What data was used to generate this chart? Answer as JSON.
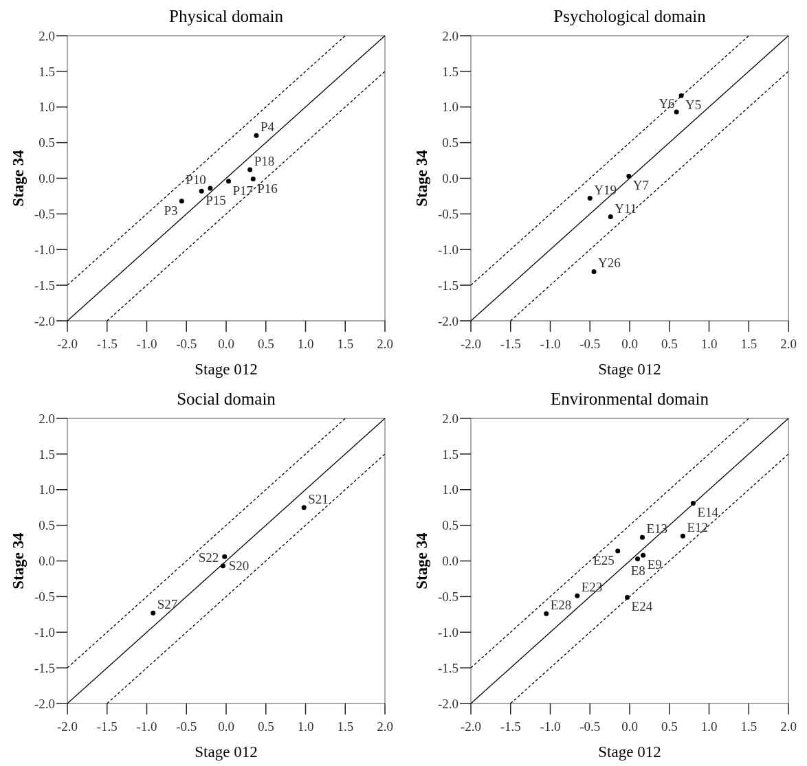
{
  "chart_data": [
    {
      "type": "scatter",
      "title": "Physical domain",
      "xlabel": "Stage 012",
      "ylabel": "Stage 34",
      "xlim": [
        -2,
        2
      ],
      "ylim": [
        -2,
        2
      ],
      "xticks": [
        {
          "value": -2,
          "label": "-2.0"
        },
        -1.5,
        {
          "value": -1,
          "label": "-1.0"
        },
        -0.5,
        {
          "value": 0,
          "label": "0.0"
        },
        0.5,
        {
          "value": 1,
          "label": "1.0"
        },
        1.5,
        {
          "value": 2,
          "label": "2.0"
        }
      ],
      "yticks": [
        {
          "value": -2,
          "label": "-2.0"
        },
        -1.5,
        {
          "value": -1,
          "label": "-1.0"
        },
        -0.5,
        {
          "value": 0,
          "label": "0.0"
        },
        0.5,
        {
          "value": 1,
          "label": "1.0"
        },
        1.5,
        {
          "value": 2,
          "label": "2.0"
        }
      ],
      "grid": false,
      "series": [
        {
          "marker": "circle",
          "color": "#000000",
          "x": [
            0.38,
            0.3,
            0.34,
            0.03,
            -0.2,
            -0.31,
            -0.56
          ],
          "values": [
            0.6,
            0.12,
            -0.01,
            -0.04,
            -0.14,
            -0.18,
            -0.32
          ]
        },
        {
          "type": "line",
          "color": "#000000",
          "line_style": "solid",
          "x": [
            -2,
            2
          ],
          "values": [
            -2,
            2
          ]
        },
        {
          "type": "line",
          "color": "#000000",
          "line_style": "dashed",
          "x": [
            -2,
            1.5
          ],
          "values": [
            -1.5,
            2
          ]
        },
        {
          "type": "line",
          "color": "#000000",
          "line_style": "dashed",
          "x": [
            -1.5,
            2
          ],
          "values": [
            -2,
            1.5
          ]
        }
      ],
      "annotations": [
        {
          "text": "P4",
          "x": 0.38,
          "y": 0.6
        },
        {
          "text": "P18",
          "x": 0.3,
          "y": 0.12
        },
        {
          "text": "P16",
          "x": 0.34,
          "y": -0.01
        },
        {
          "text": "P17",
          "x": 0.03,
          "y": -0.04
        },
        {
          "text": "P10",
          "x": -0.2,
          "y": -0.14
        },
        {
          "text": "P15",
          "x": -0.31,
          "y": -0.18
        },
        {
          "text": "P3",
          "x": -0.56,
          "y": -0.32
        }
      ]
    },
    {
      "type": "scatter",
      "title": "Psychological domain",
      "xlabel": "Stage 012",
      "ylabel": "Stage 34",
      "xlim": [
        -2,
        2
      ],
      "ylim": [
        -2,
        2
      ],
      "xticks": [
        {
          "value": -2,
          "label": "-2.0"
        },
        -1.5,
        {
          "value": -1,
          "label": "-1.0"
        },
        -0.5,
        {
          "value": 0,
          "label": "0.0"
        },
        0.5,
        {
          "value": 1,
          "label": "1.0"
        },
        1.5,
        {
          "value": 2,
          "label": "2.0"
        }
      ],
      "yticks": [
        {
          "value": -2,
          "label": "-2.0"
        },
        -1.5,
        {
          "value": -1,
          "label": "-1.0"
        },
        -0.5,
        {
          "value": 0,
          "label": "0.0"
        },
        0.5,
        {
          "value": 1,
          "label": "1.0"
        },
        1.5,
        {
          "value": 2,
          "label": "2.0"
        }
      ],
      "grid": false,
      "series": [
        {
          "marker": "circle",
          "color": "#000000",
          "x": [
            0.65,
            0.59,
            -0.01,
            -0.5,
            -0.24,
            -0.45
          ],
          "values": [
            1.16,
            0.93,
            0.03,
            -0.28,
            -0.54,
            -1.31
          ]
        },
        {
          "type": "line",
          "color": "#000000",
          "line_style": "solid",
          "x": [
            -2,
            2
          ],
          "values": [
            -2,
            2
          ]
        },
        {
          "type": "line",
          "color": "#000000",
          "line_style": "dashed",
          "x": [
            -2,
            1.5
          ],
          "values": [
            -1.5,
            2
          ]
        },
        {
          "type": "line",
          "color": "#000000",
          "line_style": "dashed",
          "x": [
            -1.5,
            2
          ],
          "values": [
            -2,
            1.5
          ]
        }
      ],
      "annotations": [
        {
          "text": "Y5",
          "x": 0.65,
          "y": 1.16
        },
        {
          "text": "Y6",
          "x": 0.59,
          "y": 0.93
        },
        {
          "text": "Y7",
          "x": -0.01,
          "y": 0.03
        },
        {
          "text": "Y19",
          "x": -0.5,
          "y": -0.28
        },
        {
          "text": "Y11",
          "x": -0.24,
          "y": -0.54
        },
        {
          "text": "Y26",
          "x": -0.45,
          "y": -1.31
        }
      ]
    },
    {
      "type": "scatter",
      "title": "Social domain",
      "xlabel": "Stage 012",
      "ylabel": "Stage 34",
      "xlim": [
        -2,
        2
      ],
      "ylim": [
        -2,
        2
      ],
      "xticks": [
        {
          "value": -2,
          "label": "-2.0"
        },
        -1.5,
        {
          "value": -1,
          "label": "-1.0"
        },
        -0.5,
        {
          "value": 0,
          "label": "0.0"
        },
        0.5,
        {
          "value": 1,
          "label": "1.0"
        },
        1.5,
        {
          "value": 2,
          "label": "2.0"
        }
      ],
      "yticks": [
        {
          "value": -2,
          "label": "-2.0"
        },
        -1.5,
        {
          "value": -1,
          "label": "-1.0"
        },
        -0.5,
        {
          "value": 0,
          "label": "0.0"
        },
        0.5,
        {
          "value": 1,
          "label": "1.0"
        },
        1.5,
        {
          "value": 2,
          "label": "2.0"
        }
      ],
      "grid": false,
      "series": [
        {
          "marker": "circle",
          "color": "#000000",
          "x": [
            0.98,
            -0.02,
            -0.04,
            -0.92
          ],
          "values": [
            0.75,
            0.06,
            -0.07,
            -0.73
          ]
        },
        {
          "type": "line",
          "color": "#000000",
          "line_style": "solid",
          "x": [
            -2,
            2
          ],
          "values": [
            -2,
            2
          ]
        },
        {
          "type": "line",
          "color": "#000000",
          "line_style": "dashed",
          "x": [
            -2,
            1.5
          ],
          "values": [
            -1.5,
            2
          ]
        },
        {
          "type": "line",
          "color": "#000000",
          "line_style": "dashed",
          "x": [
            -1.5,
            2
          ],
          "values": [
            -2,
            1.5
          ]
        }
      ],
      "annotations": [
        {
          "text": "S21",
          "x": 0.98,
          "y": 0.75
        },
        {
          "text": "S20",
          "x": -0.02,
          "y": 0.06
        },
        {
          "text": "S22",
          "x": -0.04,
          "y": -0.07
        },
        {
          "text": "S27",
          "x": -0.92,
          "y": -0.73
        }
      ]
    },
    {
      "type": "scatter",
      "title": "Environmental domain",
      "xlabel": "Stage 012",
      "ylabel": "Stage 34",
      "xlim": [
        -2,
        2
      ],
      "ylim": [
        -2,
        2
      ],
      "xticks": [
        {
          "value": -2,
          "label": "-2.0"
        },
        -1.5,
        {
          "value": -1,
          "label": "-1.0"
        },
        -0.5,
        {
          "value": 0,
          "label": "0.0"
        },
        0.5,
        {
          "value": 1,
          "label": "1.0"
        },
        1.5,
        {
          "value": 2,
          "label": "2.0"
        }
      ],
      "yticks": [
        {
          "value": -2,
          "label": "-2.0"
        },
        -1.5,
        {
          "value": -1,
          "label": "-1.0"
        },
        -0.5,
        {
          "value": 0,
          "label": "0.0"
        },
        0.5,
        {
          "value": 1,
          "label": "1.0"
        },
        1.5,
        {
          "value": 2,
          "label": "2.0"
        }
      ],
      "grid": false,
      "series": [
        {
          "marker": "circle",
          "color": "#000000",
          "x": [
            0.8,
            0.67,
            0.16,
            0.17,
            0.1,
            -0.15,
            -0.66,
            -1.05,
            -0.03
          ],
          "values": [
            0.81,
            0.35,
            0.33,
            0.08,
            0.03,
            0.14,
            -0.49,
            -0.74,
            -0.51
          ]
        },
        {
          "type": "line",
          "color": "#000000",
          "line_style": "solid",
          "x": [
            -2,
            2
          ],
          "values": [
            -2,
            2
          ]
        },
        {
          "type": "line",
          "color": "#000000",
          "line_style": "dashed",
          "x": [
            -2,
            1.5
          ],
          "values": [
            -1.5,
            2
          ]
        },
        {
          "type": "line",
          "color": "#000000",
          "line_style": "dashed",
          "x": [
            -1.5,
            2
          ],
          "values": [
            -2,
            1.5
          ]
        }
      ],
      "annotations": [
        {
          "text": "E14",
          "x": 0.8,
          "y": 0.81
        },
        {
          "text": "E12",
          "x": 0.67,
          "y": 0.35
        },
        {
          "text": "E13",
          "x": 0.16,
          "y": 0.33
        },
        {
          "text": "E9",
          "x": 0.17,
          "y": 0.08
        },
        {
          "text": "E8",
          "x": 0.1,
          "y": 0.03
        },
        {
          "text": "E25",
          "x": -0.15,
          "y": 0.14
        },
        {
          "text": "E23",
          "x": -0.66,
          "y": -0.49
        },
        {
          "text": "E28",
          "x": -1.05,
          "y": -0.74
        },
        {
          "text": "E24",
          "x": -0.03,
          "y": -0.51
        }
      ]
    }
  ]
}
